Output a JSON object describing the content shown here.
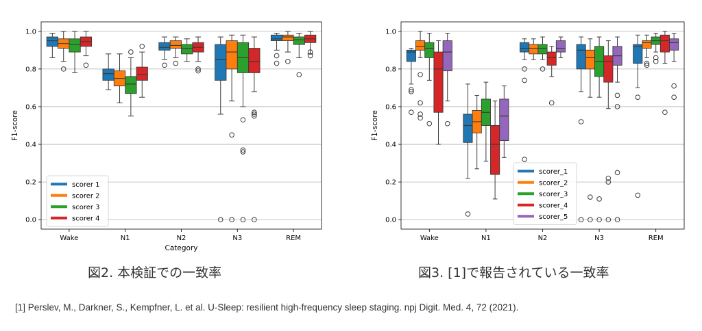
{
  "figure": {
    "caption_left": "図2. 本検証での一致率",
    "caption_right": "図3. [1]で報告されている一致率",
    "reference": "[1] Perslev, M., Darkner, S., Kempfner, L. et al. U-Sleep: resilient high-frequency sleep staging. npj Digit. Med. 4, 72 (2021)."
  },
  "chart_data": [
    {
      "type": "box",
      "title": "",
      "xlabel": "Category",
      "ylabel": "F1-score",
      "ylim": [
        -0.05,
        1.05
      ],
      "yticks": [
        0.0,
        0.2,
        0.4,
        0.6,
        0.8,
        1.0
      ],
      "ytick_labels": [
        "0.0",
        "0.2",
        "0.4",
        "0.6",
        "0.8",
        "1.0"
      ],
      "grid": "horizontal",
      "legend_position": "lower-left",
      "categories": [
        "Wake",
        "N1",
        "N2",
        "N3",
        "REM"
      ],
      "series": [
        {
          "name": "scorer 1",
          "color": "#1f77b4",
          "stats": [
            {
              "min": 0.86,
              "q1": 0.92,
              "median": 0.95,
              "q3": 0.97,
              "max": 0.99,
              "fliers": []
            },
            {
              "min": 0.69,
              "q1": 0.74,
              "median": 0.775,
              "q3": 0.8,
              "max": 0.88,
              "fliers": []
            },
            {
              "min": 0.85,
              "q1": 0.9,
              "median": 0.915,
              "q3": 0.94,
              "max": 0.97,
              "fliers": [
                0.82
              ]
            },
            {
              "min": 0.56,
              "q1": 0.74,
              "median": 0.85,
              "q3": 0.93,
              "max": 0.97,
              "fliers": [
                0.0
              ]
            },
            {
              "min": 0.9,
              "q1": 0.95,
              "median": 0.96,
              "q3": 0.98,
              "max": 0.99,
              "fliers": [
                0.87,
                0.83
              ]
            }
          ]
        },
        {
          "name": "scorer 2",
          "color": "#ff7f0e",
          "stats": [
            {
              "min": 0.84,
              "q1": 0.91,
              "median": 0.935,
              "q3": 0.96,
              "max": 1.0,
              "fliers": [
                0.8
              ]
            },
            {
              "min": 0.62,
              "q1": 0.71,
              "median": 0.75,
              "q3": 0.79,
              "max": 0.88,
              "fliers": []
            },
            {
              "min": 0.86,
              "q1": 0.91,
              "median": 0.925,
              "q3": 0.95,
              "max": 0.97,
              "fliers": [
                0.83
              ]
            },
            {
              "min": 0.63,
              "q1": 0.8,
              "median": 0.89,
              "q3": 0.95,
              "max": 0.98,
              "fliers": [
                0.45,
                0.0
              ]
            },
            {
              "min": 0.89,
              "q1": 0.95,
              "median": 0.97,
              "q3": 0.98,
              "max": 1.0,
              "fliers": [
                0.84
              ]
            }
          ]
        },
        {
          "name": "scorer 3",
          "color": "#2ca02c",
          "stats": [
            {
              "min": 0.78,
              "q1": 0.89,
              "median": 0.93,
              "q3": 0.96,
              "max": 1.0,
              "fliers": []
            },
            {
              "min": 0.55,
              "q1": 0.67,
              "median": 0.72,
              "q3": 0.76,
              "max": 0.86,
              "fliers": [
                0.89
              ]
            },
            {
              "min": 0.84,
              "q1": 0.88,
              "median": 0.91,
              "q3": 0.93,
              "max": 0.96,
              "fliers": []
            },
            {
              "min": 0.6,
              "q1": 0.78,
              "median": 0.86,
              "q3": 0.94,
              "max": 0.98,
              "fliers": [
                0.53,
                0.37,
                0.36,
                0.0
              ]
            },
            {
              "min": 0.86,
              "q1": 0.93,
              "median": 0.955,
              "q3": 0.97,
              "max": 0.99,
              "fliers": [
                0.77
              ]
            }
          ]
        },
        {
          "name": "scorer 4",
          "color": "#d62728",
          "stats": [
            {
              "min": 0.87,
              "q1": 0.92,
              "median": 0.945,
              "q3": 0.97,
              "max": 1.0,
              "fliers": [
                0.82
              ]
            },
            {
              "min": 0.65,
              "q1": 0.74,
              "median": 0.77,
              "q3": 0.81,
              "max": 0.89,
              "fliers": [
                0.92
              ]
            },
            {
              "min": 0.84,
              "q1": 0.89,
              "median": 0.915,
              "q3": 0.94,
              "max": 0.97,
              "fliers": [
                0.8,
                0.79
              ]
            },
            {
              "min": 0.68,
              "q1": 0.78,
              "median": 0.84,
              "q3": 0.91,
              "max": 0.97,
              "fliers": [
                0.57,
                0.56,
                0.55,
                0.0
              ]
            },
            {
              "min": 0.88,
              "q1": 0.94,
              "median": 0.96,
              "q3": 0.98,
              "max": 1.0,
              "fliers": [
                0.89,
                0.87
              ]
            }
          ]
        }
      ]
    },
    {
      "type": "box",
      "title": "",
      "xlabel": "",
      "ylabel": "F1-score",
      "ylim": [
        -0.05,
        1.05
      ],
      "yticks": [
        0.0,
        0.2,
        0.4,
        0.6,
        0.8,
        1.0
      ],
      "ytick_labels": [
        "0.0",
        "0.2",
        "0.4",
        "0.6",
        "0.8",
        "1.0"
      ],
      "grid": "horizontal",
      "legend_position": "lower-center",
      "categories": [
        "Wake",
        "N1",
        "N2",
        "N3",
        "REM"
      ],
      "series": [
        {
          "name": "scorer_1",
          "color": "#1f77b4",
          "stats": [
            {
              "min": 0.72,
              "q1": 0.84,
              "median": 0.89,
              "q3": 0.9,
              "max": 0.91,
              "fliers": [
                0.69,
                0.68,
                0.57
              ]
            },
            {
              "min": 0.22,
              "q1": 0.41,
              "median": 0.5,
              "q3": 0.56,
              "max": 0.72,
              "fliers": [
                0.03
              ]
            },
            {
              "min": 0.85,
              "q1": 0.89,
              "median": 0.91,
              "q3": 0.94,
              "max": 0.96,
              "fliers": [
                0.8,
                0.74,
                0.32
              ]
            },
            {
              "min": 0.68,
              "q1": 0.8,
              "median": 0.9,
              "q3": 0.93,
              "max": 0.97,
              "fliers": [
                0.52,
                0.0
              ]
            },
            {
              "min": 0.7,
              "q1": 0.83,
              "median": 0.92,
              "q3": 0.93,
              "max": 0.98,
              "fliers": [
                0.65,
                0.13
              ]
            }
          ]
        },
        {
          "name": "scorer_2",
          "color": "#ff7f0e",
          "stats": [
            {
              "min": 0.86,
              "q1": 0.9,
              "median": 0.92,
              "q3": 0.95,
              "max": 1.0,
              "fliers": [
                0.77,
                0.62,
                0.56,
                0.54
              ]
            },
            {
              "min": 0.27,
              "q1": 0.46,
              "median": 0.52,
              "q3": 0.58,
              "max": 0.66,
              "fliers": []
            },
            {
              "min": 0.85,
              "q1": 0.88,
              "median": 0.91,
              "q3": 0.93,
              "max": 0.96,
              "fliers": []
            },
            {
              "min": 0.65,
              "q1": 0.8,
              "median": 0.86,
              "q3": 0.9,
              "max": 0.96,
              "fliers": [
                0.12,
                0.0
              ]
            },
            {
              "min": 0.86,
              "q1": 0.91,
              "median": 0.94,
              "q3": 0.95,
              "max": 0.98,
              "fliers": [
                0.83,
                0.82
              ]
            }
          ]
        },
        {
          "name": "scorer_3",
          "color": "#2ca02c",
          "stats": [
            {
              "min": 0.74,
              "q1": 0.86,
              "median": 0.91,
              "q3": 0.94,
              "max": 0.99,
              "fliers": [
                0.51
              ]
            },
            {
              "min": 0.31,
              "q1": 0.5,
              "median": 0.57,
              "q3": 0.64,
              "max": 0.73,
              "fliers": []
            },
            {
              "min": 0.85,
              "q1": 0.88,
              "median": 0.91,
              "q3": 0.93,
              "max": 0.97,
              "fliers": [
                0.8
              ]
            },
            {
              "min": 0.65,
              "q1": 0.76,
              "median": 0.84,
              "q3": 0.92,
              "max": 0.97,
              "fliers": [
                0.11,
                0.0
              ]
            },
            {
              "min": 0.89,
              "q1": 0.93,
              "median": 0.95,
              "q3": 0.97,
              "max": 0.99,
              "fliers": [
                0.86,
                0.84
              ]
            }
          ]
        },
        {
          "name": "scorer_4",
          "color": "#d62728",
          "stats": [
            {
              "min": 0.4,
              "q1": 0.57,
              "median": 0.8,
              "q3": 0.89,
              "max": 0.95,
              "fliers": []
            },
            {
              "min": 0.11,
              "q1": 0.24,
              "median": 0.4,
              "q3": 0.5,
              "max": 0.63,
              "fliers": []
            },
            {
              "min": 0.76,
              "q1": 0.82,
              "median": 0.86,
              "q3": 0.89,
              "max": 0.92,
              "fliers": [
                0.62
              ]
            },
            {
              "min": 0.59,
              "q1": 0.73,
              "median": 0.84,
              "q3": 0.87,
              "max": 0.95,
              "fliers": [
                0.22,
                0.2,
                0.0
              ]
            },
            {
              "min": 0.83,
              "q1": 0.89,
              "median": 0.95,
              "q3": 0.98,
              "max": 1.0,
              "fliers": [
                0.57
              ]
            }
          ]
        },
        {
          "name": "scorer_5",
          "color": "#9467bd",
          "stats": [
            {
              "min": 0.63,
              "q1": 0.79,
              "median": 0.89,
              "q3": 0.95,
              "max": 0.99,
              "fliers": [
                0.51
              ]
            },
            {
              "min": 0.33,
              "q1": 0.42,
              "median": 0.55,
              "q3": 0.64,
              "max": 0.71,
              "fliers": []
            },
            {
              "min": 0.86,
              "q1": 0.89,
              "median": 0.91,
              "q3": 0.95,
              "max": 0.97,
              "fliers": []
            },
            {
              "min": 0.73,
              "q1": 0.82,
              "median": 0.87,
              "q3": 0.92,
              "max": 0.97,
              "fliers": [
                0.66,
                0.6,
                0.25,
                0.0
              ]
            },
            {
              "min": 0.84,
              "q1": 0.9,
              "median": 0.94,
              "q3": 0.96,
              "max": 0.99,
              "fliers": [
                0.71,
                0.65
              ]
            }
          ]
        }
      ]
    }
  ]
}
